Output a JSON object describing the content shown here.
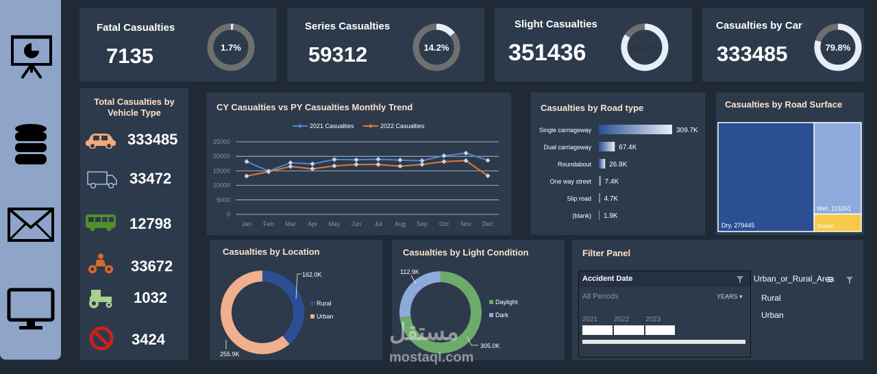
{
  "kpis": [
    {
      "title": "Fatal Casualties",
      "value": "7135",
      "pct_label": "1.7%",
      "pct": 0.017
    },
    {
      "title": "Series Casualties",
      "value": "59312",
      "pct_label": "14.2%",
      "pct": 0.142
    },
    {
      "title": "Slight Casualties",
      "value": "351436",
      "pct_label": "84.1%",
      "pct": 0.841
    },
    {
      "title": "Casualties by Car",
      "value": "333485",
      "pct_label": "79.8%",
      "pct": 0.798
    }
  ],
  "vehicle": {
    "title_line1": "Total Casualties by",
    "title_line2": "Vehicle Type",
    "items": [
      {
        "icon": "car-icon",
        "value": "333485",
        "color": "#f4a97b"
      },
      {
        "icon": "van-icon",
        "value": "33472",
        "color": "#9ec0e8"
      },
      {
        "icon": "bus-icon",
        "value": "12798",
        "color": "#4f8f2c"
      },
      {
        "icon": "motorcycle-icon",
        "value": "33672",
        "color": "#d66a2a"
      },
      {
        "icon": "tractor-icon",
        "value": "1032",
        "color": "#a8d08d"
      },
      {
        "icon": "prohibited-icon",
        "value": "3424",
        "color": "#cc1f1f"
      }
    ]
  },
  "sidebar_icons": [
    "presentation-icon",
    "database-icon",
    "mail-icon",
    "monitor-icon"
  ],
  "chart_data": [
    {
      "type": "line",
      "title": "CY Casualties vs PY Casualties Monthly Trend",
      "categories": [
        "Jan",
        "Feb",
        "Mar",
        "Apr",
        "May",
        "Jun",
        "Jul",
        "Aug",
        "Sep",
        "Oct",
        "Nov",
        "Dec"
      ],
      "series": [
        {
          "name": "2021 Casualties",
          "color": "#4e86d4",
          "values": [
            18200,
            14900,
            17800,
            17400,
            18900,
            18800,
            19000,
            18700,
            18500,
            20200,
            21100,
            18600
          ]
        },
        {
          "name": "2022 Casualties",
          "color": "#e07b39",
          "values": [
            13200,
            14700,
            16500,
            15700,
            16700,
            17200,
            17200,
            16600,
            17200,
            18200,
            18500,
            13300
          ]
        }
      ],
      "yticks": [
        "0",
        "5000",
        "10000",
        "15000",
        "20000",
        "25000"
      ],
      "ylim": [
        0,
        25000
      ],
      "legend": "top",
      "grid": true
    },
    {
      "type": "bar",
      "orientation": "horizontal",
      "title": "Casualties by Road type",
      "categories": [
        "Single carriageway",
        "Dual carriageway",
        "Roundabout",
        "One way street",
        "Slip road",
        "(blank)"
      ],
      "values": [
        309700,
        67400,
        26800,
        7400,
        4700,
        1900
      ],
      "value_labels": [
        "309.7K",
        "67.4K",
        "26.8K",
        "7.4K",
        "4.7K",
        "1.9K"
      ]
    },
    {
      "type": "heatmap",
      "subtype": "treemap",
      "title": "Casualties by Road Surface",
      "items": [
        {
          "label": "Dry, 279445",
          "value": 279445,
          "color": "#2c4f94"
        },
        {
          "label": "Wet, 115261",
          "value": 115261,
          "color": "#8eaadc"
        },
        {
          "label": "Snow/...",
          "value": 22000,
          "color": "#f7c948"
        }
      ]
    },
    {
      "type": "pie",
      "subtype": "donut",
      "title": "Casualties by Location",
      "labels": [
        "Rural",
        "Urban"
      ],
      "values": [
        162000,
        255900
      ],
      "value_labels": [
        "162.0K",
        "255.9K"
      ],
      "colors": [
        "#2c4f94",
        "#f1b08d"
      ],
      "legend": "right"
    },
    {
      "type": "pie",
      "subtype": "donut",
      "title": "Casualties by Light Condition",
      "labels": [
        "Daylight",
        "Dark"
      ],
      "values": [
        305000,
        112900
      ],
      "value_labels": [
        "305.0K",
        "112.9K"
      ],
      "colors": [
        "#6cab6a",
        "#8eaadc"
      ],
      "legend": "right"
    }
  ],
  "filter": {
    "title": "Filter Panel",
    "date_header": "Accident Date",
    "all_periods": "All Periods",
    "years_label": "YEARS",
    "years": [
      "2021",
      "2022",
      "2023"
    ],
    "area_header": "Urban_or_Rural_Area",
    "area_items": [
      "Rural",
      "Urban"
    ]
  },
  "watermark": {
    "arabic": "مستقل",
    "latin": "mostaql.com"
  }
}
